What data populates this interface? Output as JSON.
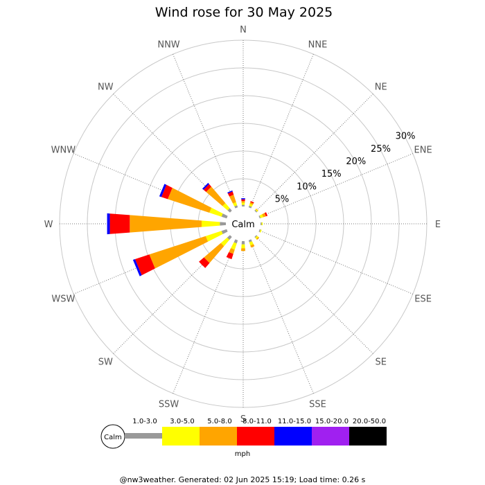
{
  "chart_data": {
    "type": "wind-rose",
    "title": "Wind rose for 30 May 2025",
    "directions": [
      "N",
      "NNE",
      "NE",
      "ENE",
      "E",
      "ESE",
      "SE",
      "SSE",
      "S",
      "SSW",
      "SW",
      "WSW",
      "W",
      "WNW",
      "NW",
      "NNW"
    ],
    "ring_labels": [
      "5%",
      "10%",
      "15%",
      "20%",
      "25%",
      "30%"
    ],
    "ring_values": [
      5,
      10,
      15,
      20,
      25,
      30
    ],
    "rmax": 30,
    "calm_label": "Calm",
    "unit": "mph",
    "speed_bins": [
      {
        "label": "1.0-3.0",
        "color": "#999999"
      },
      {
        "label": "3.0-5.0",
        "color": "#ffff00"
      },
      {
        "label": "5.0-8.0",
        "color": "#ffa500"
      },
      {
        "label": "8.0-11.0",
        "color": "#ff0000"
      },
      {
        "label": "11.0-15.0",
        "color": "#0000ff"
      },
      {
        "label": "15.0-20.0",
        "color": "#a020f0"
      },
      {
        "label": "20.0-50.0",
        "color": "#000000"
      }
    ],
    "series": [
      {
        "direction": "N",
        "values": [
          0.3,
          0.4,
          0.3,
          0.3,
          0.2,
          0,
          0
        ]
      },
      {
        "direction": "NNE",
        "values": [
          0.3,
          0.4,
          0.3,
          0.2,
          0,
          0,
          0
        ]
      },
      {
        "direction": "NE",
        "values": [
          0.2,
          0.2,
          0.1,
          0,
          0,
          0,
          0
        ]
      },
      {
        "direction": "ENE",
        "values": [
          0.2,
          0.5,
          0.5,
          0.3,
          0,
          0,
          0
        ]
      },
      {
        "direction": "E",
        "values": [
          0.2,
          0.2,
          0,
          0,
          0,
          0,
          0
        ]
      },
      {
        "direction": "ESE",
        "values": [
          0.2,
          0.2,
          0,
          0,
          0,
          0,
          0
        ]
      },
      {
        "direction": "SE",
        "values": [
          0.2,
          0.3,
          0.2,
          0,
          0,
          0,
          0
        ]
      },
      {
        "direction": "SSE",
        "values": [
          0.4,
          0.6,
          0.4,
          0,
          0,
          0,
          0
        ]
      },
      {
        "direction": "S",
        "values": [
          0.6,
          0.7,
          0.5,
          0,
          0,
          0,
          0
        ]
      },
      {
        "direction": "SSW",
        "values": [
          0.6,
          1.2,
          0.8,
          1.0,
          0,
          0,
          0
        ]
      },
      {
        "direction": "SW",
        "values": [
          0.7,
          1.5,
          4.0,
          1.2,
          0,
          0,
          0
        ]
      },
      {
        "direction": "WSW",
        "values": [
          1.0,
          3.0,
          10.7,
          2.7,
          0.4,
          0,
          0
        ]
      },
      {
        "direction": "W",
        "values": [
          1.1,
          3.3,
          13.0,
          3.6,
          0.5,
          0,
          0
        ]
      },
      {
        "direction": "WNW",
        "values": [
          1.0,
          2.3,
          7.9,
          1.2,
          0.4,
          0,
          0
        ]
      },
      {
        "direction": "NW",
        "values": [
          0.6,
          1.2,
          3.9,
          0.6,
          0.3,
          0,
          0
        ]
      },
      {
        "direction": "NNW",
        "values": [
          0.4,
          0.6,
          1.4,
          0.6,
          0.2,
          0,
          0
        ]
      }
    ]
  },
  "footer": "@nw3weather. Generated: 02 Jun 2025 15:19; Load time: 0.26 s"
}
